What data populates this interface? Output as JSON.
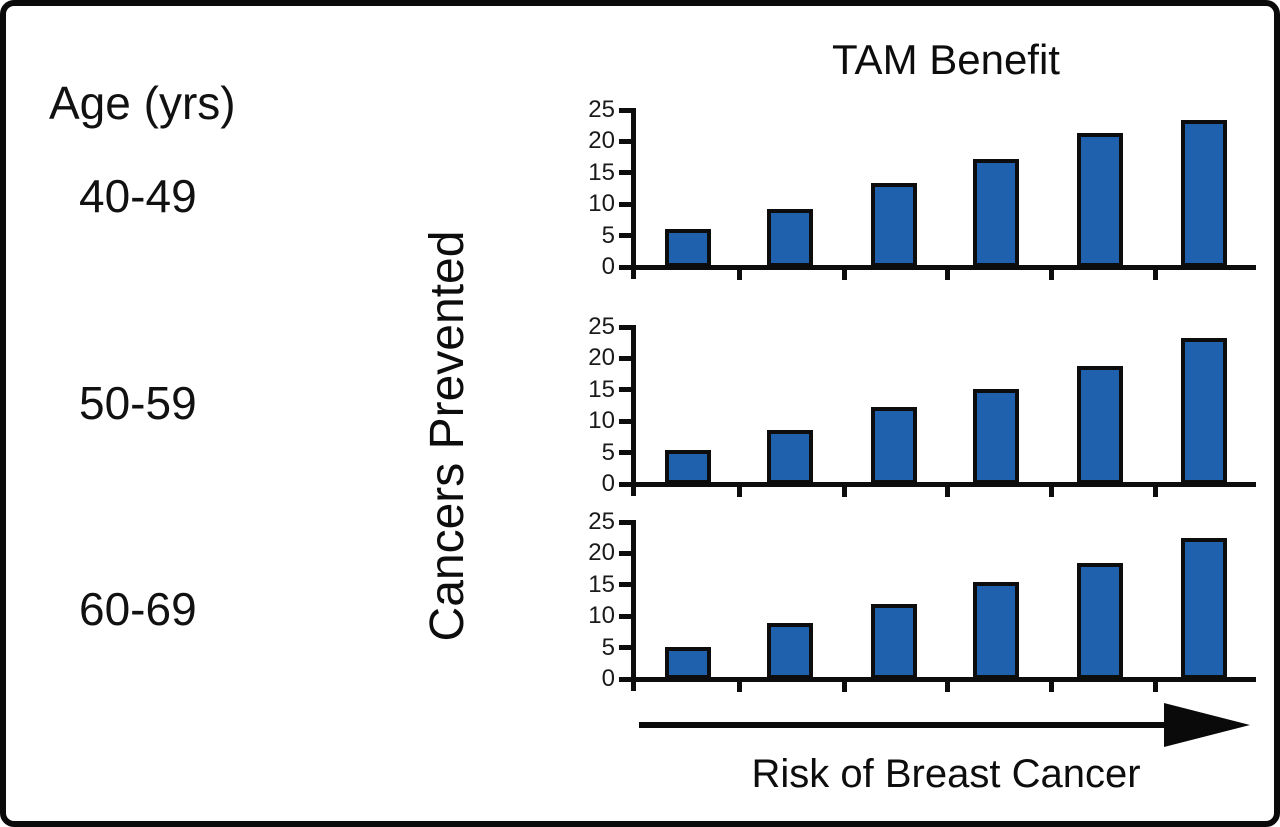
{
  "figure": {
    "age_column": {
      "header": "Age (yrs)",
      "groups": [
        "40-49",
        "50-59",
        "60-69"
      ]
    },
    "chart_title": "TAM Benefit",
    "y_axis_label": "Cancers Prevented",
    "x_axis_label": "Risk of Breast Cancer"
  },
  "colors": {
    "bar_fill": "#2061ae",
    "ink": "#0d0d0d",
    "background": "#ffffff"
  },
  "chart_data": [
    {
      "type": "bar",
      "title": "TAM Benefit",
      "age_group": "40-49",
      "values": [
        6.1,
        9.2,
        13.4,
        17.2,
        21.3,
        23.4
      ],
      "ylabel": "Cancers Prevented",
      "xlabel": "Risk of Breast Cancer (increasing, unlabeled risk levels)",
      "ylim": [
        0,
        25
      ],
      "yticks": [
        0,
        5,
        10,
        15,
        20,
        25
      ],
      "grid": false,
      "legend": false
    },
    {
      "type": "bar",
      "title": "TAM Benefit",
      "age_group": "50-59",
      "values": [
        5.4,
        8.6,
        12.2,
        15.2,
        18.8,
        23.2
      ],
      "ylabel": "Cancers Prevented",
      "xlabel": "Risk of Breast Cancer (increasing, unlabeled risk levels)",
      "ylim": [
        0,
        25
      ],
      "yticks": [
        0,
        5,
        10,
        15,
        20,
        25
      ],
      "grid": false,
      "legend": false
    },
    {
      "type": "bar",
      "title": "TAM Benefit",
      "age_group": "60-69",
      "values": [
        5.1,
        8.9,
        11.9,
        15.4,
        18.5,
        22.4
      ],
      "ylabel": "Cancers Prevented",
      "xlabel": "Risk of Breast Cancer (increasing, unlabeled risk levels)",
      "ylim": [
        0,
        25
      ],
      "yticks": [
        0,
        5,
        10,
        15,
        20,
        25
      ],
      "grid": false,
      "legend": false
    }
  ]
}
